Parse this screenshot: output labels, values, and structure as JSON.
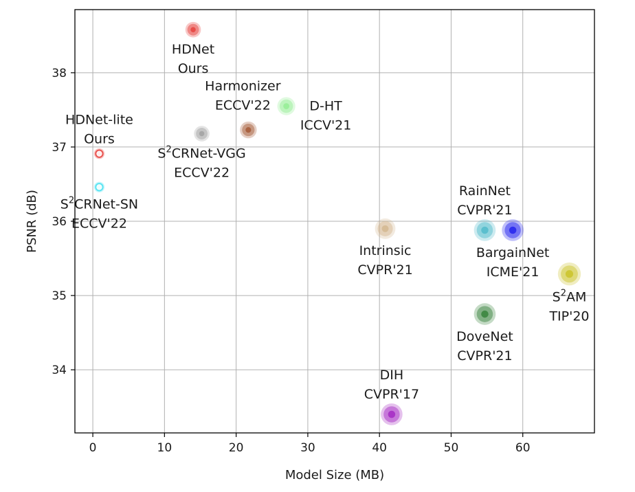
{
  "chart_data": {
    "type": "scatter",
    "title": "",
    "xlabel": "Model Size (MB)",
    "ylabel": "PSNR (dB)",
    "xlim": [
      -2.5,
      70
    ],
    "ylim": [
      33.15,
      38.85
    ],
    "x_ticks": [
      0,
      10,
      20,
      30,
      40,
      50,
      60
    ],
    "y_ticks": [
      34,
      35,
      36,
      37,
      38
    ],
    "grid": true,
    "points": [
      {
        "label": [
          "HDNet",
          "Ours"
        ],
        "superscript": "",
        "x": 14.0,
        "y": 38.58,
        "color": "#e53935",
        "size": 8,
        "label_pos": "below"
      },
      {
        "label": [
          "HDNet-lite",
          "Ours"
        ],
        "superscript": "",
        "x": 0.9,
        "y": 36.91,
        "color": "#e53935",
        "size": 4,
        "label_pos": "above"
      },
      {
        "label": [
          "CRNet-SN",
          "ECCV'22"
        ],
        "superscript": "2",
        "x": 0.9,
        "y": 36.46,
        "color": "#40e0f0",
        "size": 4,
        "label_pos": "below"
      },
      {
        "label": [
          "CRNet-VGG",
          "ECCV'22"
        ],
        "superscript": "2",
        "x": 15.2,
        "y": 37.18,
        "color": "#9e9e9e",
        "size": 8,
        "label_pos": "below"
      },
      {
        "label": [
          "Harmonizer",
          "ECCV'22"
        ],
        "superscript": "",
        "x": 21.7,
        "y": 37.23,
        "color": "#a0522d",
        "size": 9,
        "label_pos": "above-left"
      },
      {
        "label": [
          "D-HT",
          "ICCV'21"
        ],
        "superscript": "",
        "x": 27.0,
        "y": 37.55,
        "color": "#90ee90",
        "size": 10,
        "label_pos": "right"
      },
      {
        "label": [
          "Intrinsic",
          "CVPR'21"
        ],
        "superscript": "",
        "x": 40.8,
        "y": 35.9,
        "color": "#d2b48c",
        "size": 12,
        "label_pos": "below"
      },
      {
        "label": [
          "RainNet",
          "CVPR'21"
        ],
        "superscript": "",
        "x": 54.7,
        "y": 35.88,
        "color": "#4ab8c8",
        "size": 13,
        "label_pos": "above"
      },
      {
        "label": [
          "BargainNet",
          "ICME'21"
        ],
        "superscript": "",
        "x": 58.6,
        "y": 35.88,
        "color": "#1a1aee",
        "size": 13,
        "label_pos": "below"
      },
      {
        "label": [
          "AM",
          "TIP'20"
        ],
        "superscript": "2",
        "x": 66.5,
        "y": 35.29,
        "color": "#c8c020",
        "size": 14,
        "label_pos": "below"
      },
      {
        "label": [
          "DoveNet",
          "CVPR'21"
        ],
        "superscript": "",
        "x": 54.7,
        "y": 34.75,
        "color": "#2e7d32",
        "size": 13,
        "label_pos": "below"
      },
      {
        "label": [
          "DIH",
          "CVPR'17"
        ],
        "superscript": "",
        "x": 41.7,
        "y": 33.4,
        "color": "#a020c0",
        "size": 13,
        "label_pos": "above"
      }
    ]
  }
}
